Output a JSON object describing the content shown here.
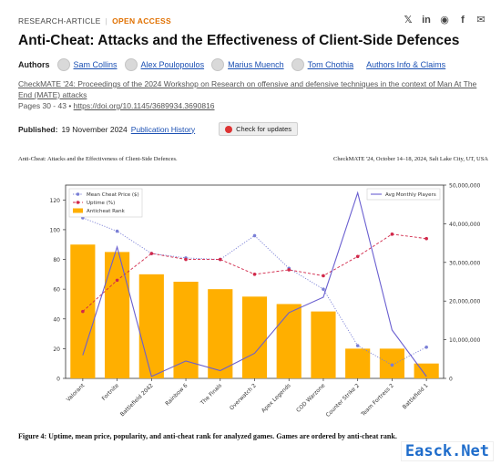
{
  "header": {
    "article_type": "RESEARCH-ARTICLE",
    "open_access": "OPEN ACCESS",
    "share_icons": [
      "x-icon",
      "linkedin-icon",
      "reddit-icon",
      "facebook-icon",
      "email-icon"
    ]
  },
  "paper": {
    "title": "Anti-Cheat: Attacks and the Effectiveness of Client-Side Defences",
    "authors_label": "Authors",
    "authors": [
      "Sam Collins",
      "Alex Poulopoulos",
      "Marius Muench",
      "Tom Chothia"
    ],
    "authors_info_link": "Authors Info & Claims",
    "proceedings": "CheckMATE '24: Proceedings of the 2024 Workshop on Research on offensive and defensive techniques in the context of Man At The End (MATE) attacks",
    "pages": "Pages 30 - 43",
    "doi": "https://doi.org/10.1145/3689934.3690816",
    "published_label": "Published:",
    "published_date": "19 November 2024",
    "publication_history": "Publication History",
    "check_updates": "Check for updates"
  },
  "figure": {
    "running_head_left": "Anti-Cheat: Attacks and the Effectiveness of Client-Side Defences.",
    "running_head_right": "CheckMATE '24, October 14–18, 2024, Salt Lake City, UT, USA",
    "caption": "Figure 4: Uptime, mean price, popularity, and anti-cheat rank for analyzed games. Games are ordered by anti-cheat rank."
  },
  "chart_data": {
    "type": "bar",
    "categories": [
      "Valorant",
      "Fortnite",
      "Battlefield 2042",
      "Rainbow 6",
      "The Finals",
      "Overwatch 2",
      "Apex Legends",
      "COD Warzone",
      "Counter Strike 2",
      "Team Fortress 2",
      "Battlefield 1"
    ],
    "ylim_left": [
      0,
      130
    ],
    "yticks_left": [
      0,
      20,
      40,
      60,
      80,
      100,
      120
    ],
    "ylim_right": [
      0,
      50000000
    ],
    "yticks_right": [
      0,
      10000000,
      20000000,
      30000000,
      40000000,
      50000000
    ],
    "ytick_labels_right": [
      "0",
      "10,000,000",
      "20,000,000",
      "30,000,000",
      "40,000,000",
      "50,000,000"
    ],
    "legend_position_left": "top-left",
    "legend_position_right": "top-right",
    "grid": false,
    "series": [
      {
        "name": "Anticheat Rank",
        "kind": "bar",
        "axis": "left",
        "color": "#ffaf00",
        "values": [
          90,
          85,
          70,
          65,
          60,
          55,
          50,
          45,
          20,
          20,
          10
        ]
      },
      {
        "name": "Mean Cheat Price ($)",
        "kind": "line",
        "axis": "left",
        "color": "#7a7fd6",
        "style": "dotted",
        "values": [
          108,
          99,
          84,
          81,
          80,
          96,
          74,
          60,
          22,
          9,
          21
        ]
      },
      {
        "name": "Uptime (%)",
        "kind": "line",
        "axis": "left",
        "color": "#d1284a",
        "style": "dashed",
        "values": [
          45,
          66,
          84,
          80,
          80,
          70,
          73,
          69,
          82,
          97,
          94
        ]
      },
      {
        "name": "Avg Monthly Players",
        "kind": "line",
        "axis": "right",
        "color": "#6a5fd0",
        "style": "solid",
        "values": [
          6000000,
          34000000,
          500000,
          4500000,
          2000000,
          6500000,
          17000000,
          21000000,
          48000000,
          12500000,
          500000
        ]
      }
    ]
  }
}
